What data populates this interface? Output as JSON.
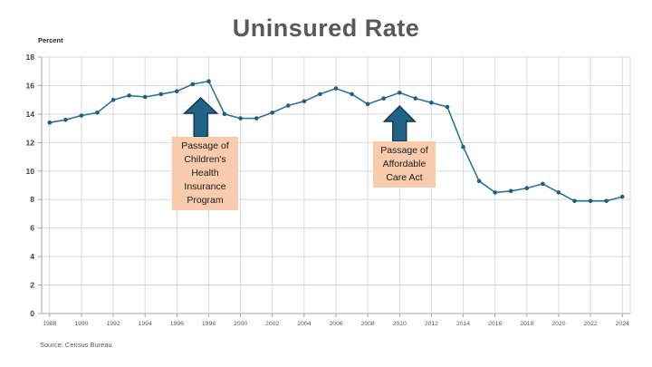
{
  "title": "Uninsured Rate",
  "axis_unit_label": "Percent",
  "source": "Source: Census Bureau",
  "colors": {
    "line": "#2e7596",
    "marker": "#245e7e",
    "arrow_fill": "#1f6387",
    "arrow_stroke": "#16354f",
    "annotation_box": "#f8cbad",
    "gridline": "#d9d9d9",
    "axis": "#a6a6a6",
    "title_text": "#595959",
    "tick_text": "#595959",
    "ytick_text": "#404040"
  },
  "chart_data": {
    "type": "line",
    "title": "Uninsured Rate",
    "ylabel": "Percent",
    "ylim": [
      0,
      18
    ],
    "grid": true,
    "legend": "none",
    "x": [
      1988,
      1989,
      1990,
      1991,
      1992,
      1993,
      1994,
      1995,
      1996,
      1997,
      1998,
      1999,
      2000,
      2001,
      2002,
      2003,
      2004,
      2005,
      2006,
      2007,
      2008,
      2009,
      2010,
      2011,
      2012,
      2013,
      2014,
      2015,
      2016,
      2017,
      2018,
      2019,
      2020,
      2021,
      2022,
      2023,
      2024
    ],
    "values": [
      13.4,
      13.6,
      13.9,
      14.1,
      15.0,
      15.3,
      15.2,
      15.4,
      15.6,
      16.1,
      16.3,
      14.0,
      13.7,
      13.7,
      14.1,
      14.6,
      14.9,
      15.4,
      15.8,
      15.4,
      14.7,
      15.1,
      15.5,
      15.1,
      14.8,
      14.5,
      11.7,
      9.3,
      8.5,
      8.6,
      8.8,
      9.1,
      8.5,
      7.9,
      7.9,
      7.9,
      8.2
    ],
    "yticks": [
      "18",
      "16",
      "14",
      "12",
      "10",
      "8",
      "6",
      "4",
      "2",
      "0"
    ],
    "xticks": [
      "1988",
      "1990",
      "1992",
      "1994",
      "1996",
      "1998",
      "2000",
      "2002",
      "2004",
      "2006",
      "2008",
      "2010",
      "2012",
      "2014",
      "2016",
      "2018",
      "2020",
      "2022",
      "2024"
    ],
    "annotations": [
      {
        "text": "Passage of\nChildren's\nHealth\nInsurance\nProgram",
        "points_to_year": 1997.5
      },
      {
        "text": "Passage of\nAffordable\nCare Act",
        "points_to_year": 2010
      }
    ]
  }
}
